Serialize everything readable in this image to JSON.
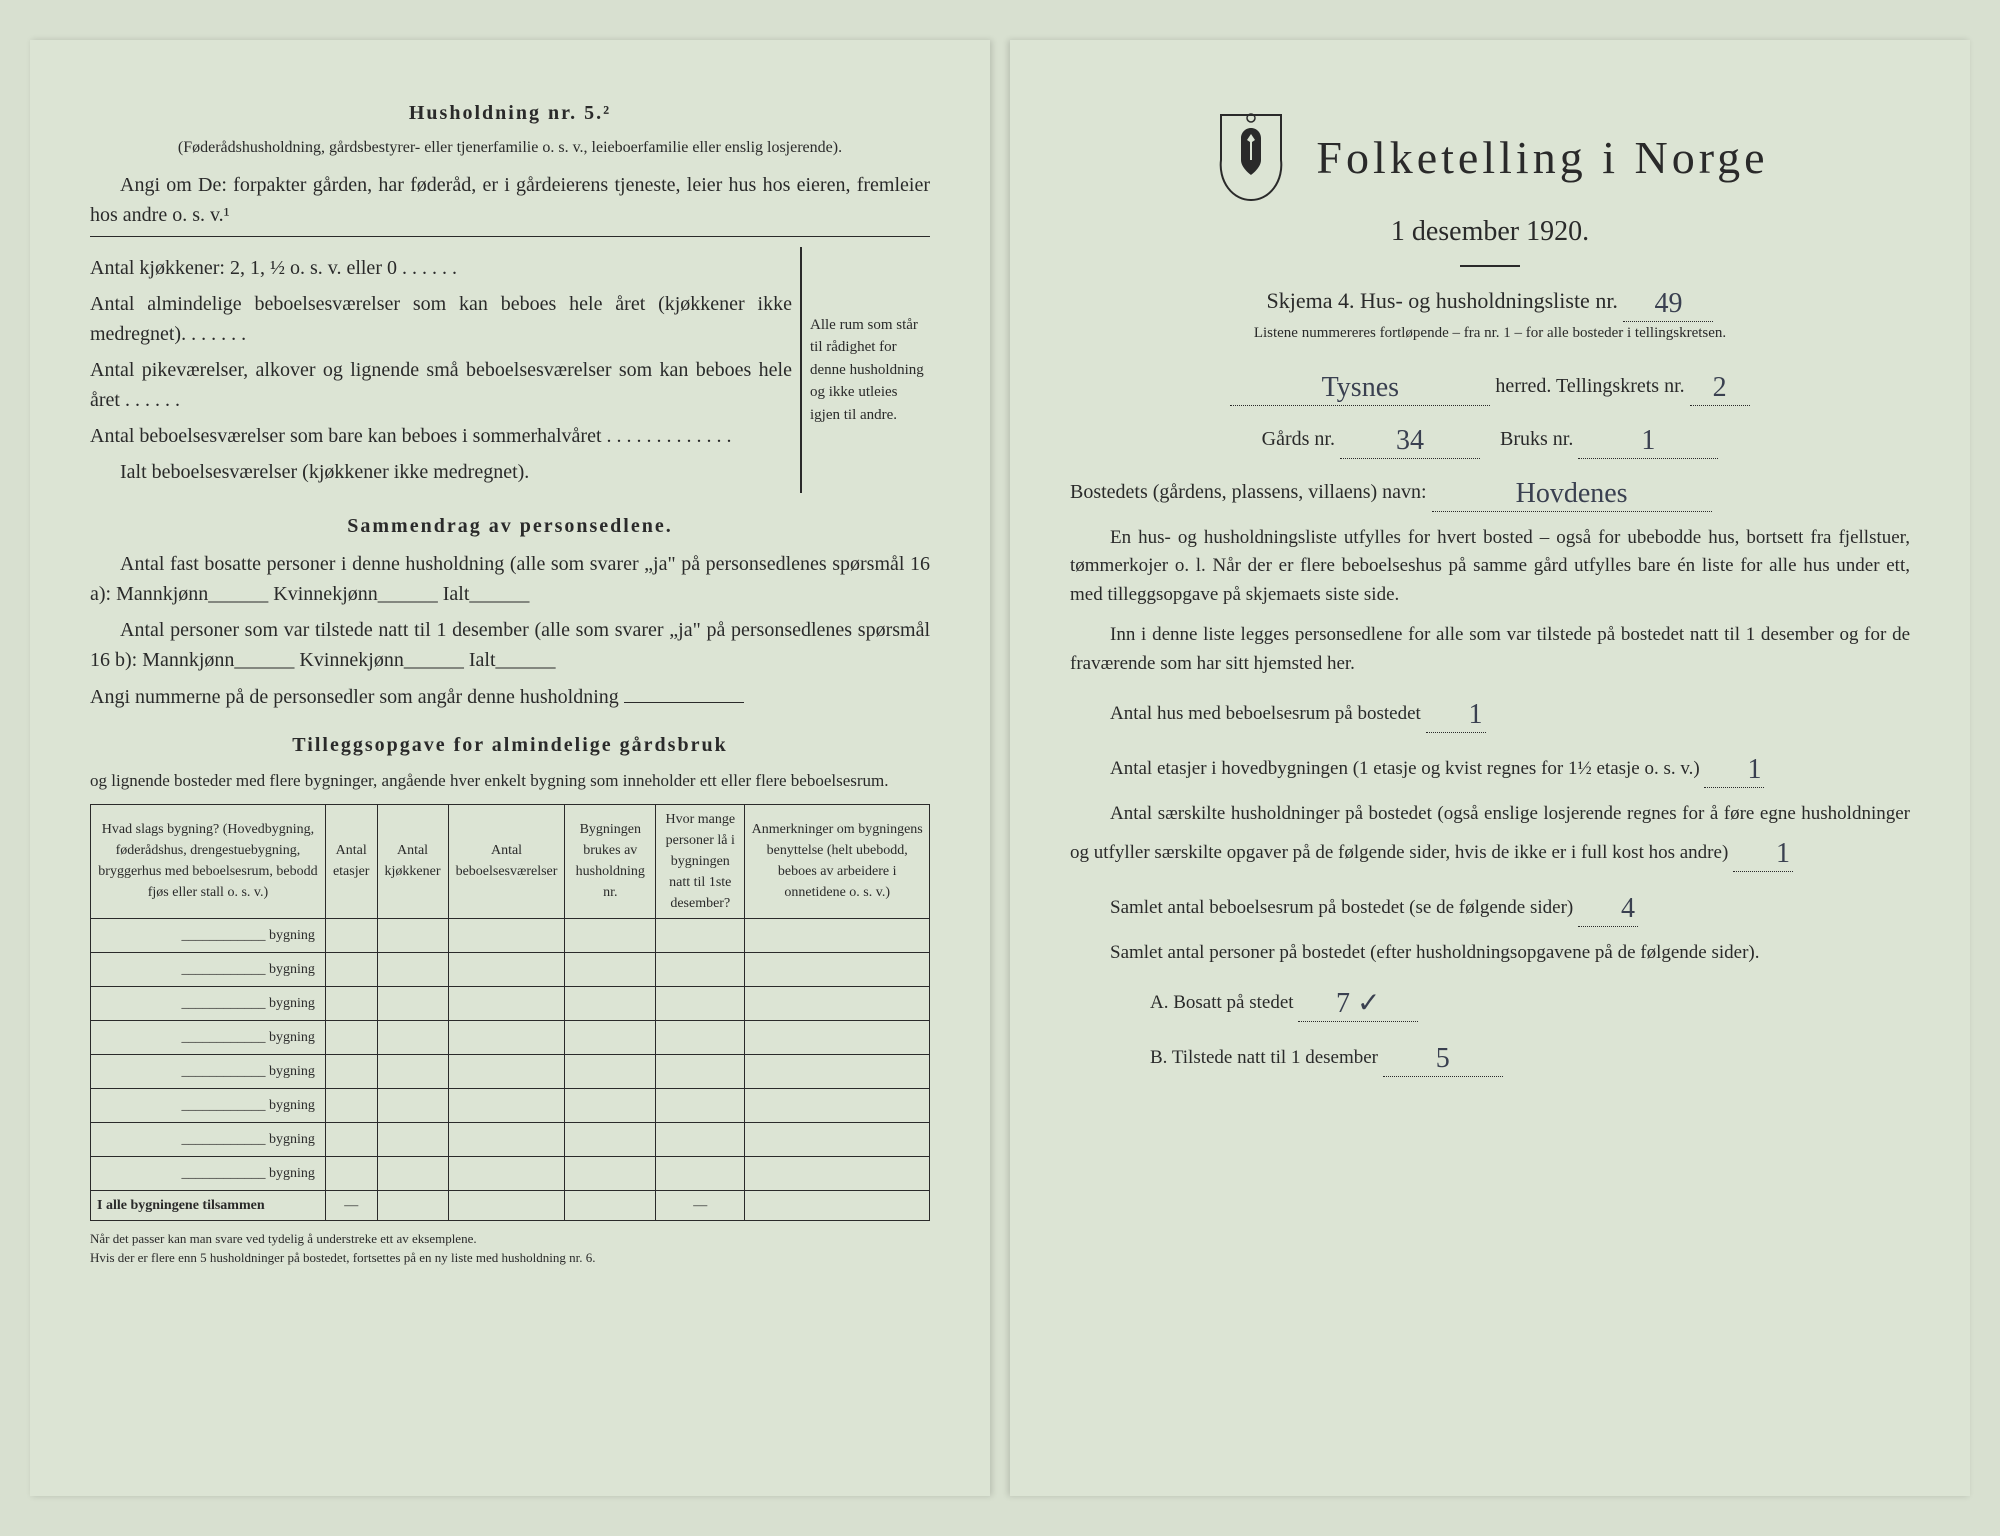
{
  "left": {
    "heading5": "Husholdning nr. 5.²",
    "h5_para": "(Føderådshusholdning, gårdsbestyrer- eller tjenerfamilie o. s. v., leieboerfamilie eller enslig losjerende).",
    "h5_angi": "Angi om De: forpakter gården, har føderåd, er i gårdeierens tjeneste, leier hus hos eieren, fremleier hos andre o. s. v.¹",
    "antal_kjokk": "Antal kjøkkener: 2, 1, ½ o. s. v. eller 0 . . . . . .",
    "antal_alm": "Antal almindelige beboelsesværelser som kan beboes hele året (kjøkkener ikke medregnet). . . . . . .",
    "antal_pike": "Antal pikeværelser, alkover og lignende små beboelsesværelser som kan beboes hele året . . . . . .",
    "antal_sommer": "Antal beboelsesværelser som bare kan beboes i sommerhalvåret . . . . . . . . . . . . .",
    "ialt": "Ialt beboelsesværelser (kjøkkener ikke medregnet).",
    "bracket_note": "Alle rum som står til rådighet for denne husholdning og ikke utleies igjen til andre.",
    "sammen_heading": "Sammendrag av personsedlene.",
    "sammen1": "Antal fast bosatte personer i denne husholdning (alle som svarer „ja\" på personsedlenes spørsmål 16 a): Mannkjønn______ Kvinnekjønn______ Ialt______",
    "sammen2": "Antal personer som var tilstede natt til 1 desember (alle som svarer „ja\" på personsedlenes spørsmål 16 b): Mannkjønn______ Kvinnekjønn______ Ialt______",
    "angi_nr": "Angi nummerne på de personsedler som angår denne husholdning",
    "tillegg_heading": "Tilleggsopgave for almindelige gårdsbruk",
    "tillegg_sub": "og lignende bosteder med flere bygninger, angående hver enkelt bygning som inneholder ett eller flere beboelsesrum.",
    "table": {
      "headers": [
        "Hvad slags bygning?\n(Hovedbygning, føderådshus, drengestuebygning, bryggerhus med beboelsesrum, bebodd fjøs eller stall o. s. v.)",
        "Antal etasjer",
        "Antal kjøkkener",
        "Antal beboelsesværelser",
        "Bygningen brukes av husholdning nr.",
        "Hvor mange personer lå i bygningen natt til 1ste desember?",
        "Anmerkninger om bygningens benyttelse (helt ubebodd, beboes av arbeidere i onnetidene o. s. v.)"
      ],
      "rowlabel": "bygning",
      "row_count": 8,
      "total_label": "I alle bygningene tilsammen",
      "dash": "—"
    },
    "footnote": "Når det passer kan man svare ved tydelig å understreke ett av eksemplene.\nHvis der er flere enn 5 husholdninger på bostedet, fortsettes på en ny liste med husholdning nr. 6."
  },
  "right": {
    "main_title": "Folketelling i Norge",
    "sub_title": "1 desember 1920.",
    "skjema": "Skjema 4.  Hus- og husholdningsliste nr.",
    "skjema_nr": "49",
    "liste_note": "Listene nummereres fortløpende – fra nr. 1 – for alle bosteder i tellingskretsen.",
    "herred_value": "Tysnes",
    "herred_label": "herred.  Tellingskrets nr.",
    "krets_nr": "2",
    "gards_label": "Gårds nr.",
    "gards_nr": "34",
    "bruks_label": "Bruks nr.",
    "bruks_nr": "1",
    "bosted_label": "Bostedets (gårdens, plassens, villaens) navn:",
    "bosted_value": "Hovdenes",
    "body1": "En hus- og husholdningsliste utfylles for hvert bosted – også for ubebodde hus, bortsett fra fjellstuer, tømmerkojer o. l. Når der er flere beboelseshus på samme gård utfylles bare én liste for alle hus under ett, med tilleggsopgave på skjemaets siste side.",
    "body2": "Inn i denne liste legges personsedlene for alle som var tilstede på bostedet natt til 1 desember og for de fraværende som har sitt hjemsted her.",
    "q1": "Antal hus med beboelsesrum på bostedet",
    "q1v": "1",
    "q2a": "Antal etasjer i hovedbygningen (1 etasje og kvist regnes for 1½ etasje o. s. v.)",
    "q2v": "1",
    "q3": "Antal særskilte husholdninger på bostedet (også enslige losjerende regnes for å føre egne husholdninger og utfyller særskilte opgaver på de følgende sider, hvis de ikke er i full kost hos andre)",
    "q3v": "1",
    "q4": "Samlet antal beboelsesrum på bostedet (se de følgende sider)",
    "q4v": "4",
    "q5": "Samlet antal personer på bostedet (efter husholdningsopgavene på de følgende sider).",
    "q5a_label": "A.  Bosatt på stedet",
    "q5a_v": "7 ✓",
    "q5b_label": "B.  Tilstede natt til 1 desember",
    "q5b_v": "5"
  },
  "colors": {
    "paper": "#dce4d4",
    "ink": "#2a2a2a",
    "handwriting": "#3a4050"
  }
}
